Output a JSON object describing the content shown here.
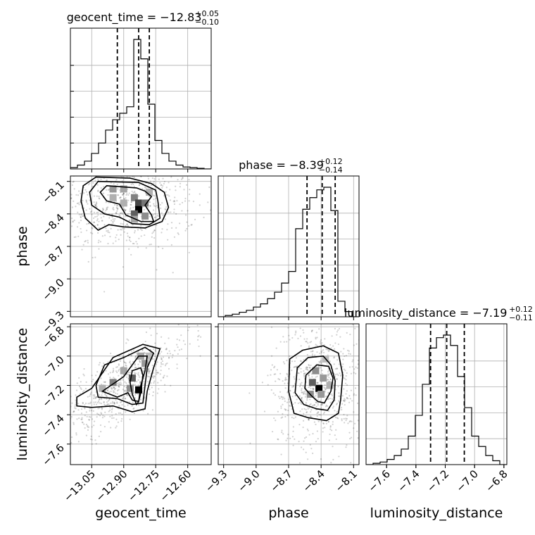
{
  "chart_data": {
    "type": "corner",
    "parameters": [
      {
        "name": "geocent_time",
        "title_main": "geocent_time = −12.83",
        "title_upper": "+0.05",
        "title_lower": "−0.10",
        "range": [
          -13.15,
          -12.49
        ],
        "ticks": [
          -13.05,
          -12.9,
          -12.75,
          -12.6
        ],
        "tick_labels": [
          "−13.05",
          "−12.90",
          "−12.75",
          "−12.60"
        ],
        "quantiles": [
          -12.93,
          -12.83,
          -12.78
        ],
        "hist_edges": [
          -13.15,
          -13.117,
          -13.084,
          -13.051,
          -13.018,
          -12.985,
          -12.952,
          -12.919,
          -12.886,
          -12.853,
          -12.82,
          -12.787,
          -12.754,
          -12.721,
          -12.688,
          -12.655,
          -12.622,
          -12.589,
          -12.556,
          -12.523,
          -12.49
        ],
        "hist_counts": [
          0.01,
          0.03,
          0.06,
          0.12,
          0.2,
          0.3,
          0.38,
          0.43,
          0.48,
          1.0,
          0.85,
          0.5,
          0.22,
          0.12,
          0.06,
          0.03,
          0.015,
          0.01,
          0.005,
          0.0
        ]
      },
      {
        "name": "phase",
        "title_main": "phase = −8.39",
        "title_upper": "+0.12",
        "title_lower": "−0.14",
        "range": [
          -9.35,
          -8.05
        ],
        "ticks": [
          -9.3,
          -9.0,
          -8.7,
          -8.4,
          -8.1
        ],
        "tick_labels": [
          "−9.3",
          "−9.0",
          "−8.7",
          "−8.4",
          "−8.1"
        ],
        "quantiles": [
          -8.53,
          -8.39,
          -8.27
        ],
        "hist_edges": [
          -9.35,
          -9.285,
          -9.22,
          -9.155,
          -9.09,
          -9.025,
          -8.96,
          -8.895,
          -8.83,
          -8.765,
          -8.7,
          -8.635,
          -8.57,
          -8.505,
          -8.44,
          -8.375,
          -8.31,
          -8.245,
          -8.18,
          -8.115,
          -8.05
        ],
        "hist_counts": [
          0.0,
          0.01,
          0.02,
          0.035,
          0.05,
          0.075,
          0.1,
          0.14,
          0.19,
          0.26,
          0.35,
          0.68,
          0.83,
          0.92,
          0.98,
          1.0,
          0.82,
          0.12,
          0.04,
          0.0
        ]
      },
      {
        "name": "luminosity_distance",
        "title_main": "luminosity_distance = −7.19",
        "title_upper": "+0.12",
        "title_lower": "−0.11",
        "range": [
          -7.74,
          -6.78
        ],
        "ticks": [
          -7.6,
          -7.4,
          -7.2,
          -7.0,
          -6.8
        ],
        "tick_labels": [
          "−7.6",
          "−7.4",
          "−7.2",
          "−7.0",
          "−6.8"
        ],
        "quantiles": [
          -7.3,
          -7.19,
          -7.07
        ],
        "hist_edges": [
          -7.74,
          -7.692,
          -7.644,
          -7.596,
          -7.548,
          -7.5,
          -7.452,
          -7.404,
          -7.356,
          -7.308,
          -7.26,
          -7.212,
          -7.164,
          -7.116,
          -7.068,
          -7.02,
          -6.972,
          -6.924,
          -6.876,
          -6.828,
          -6.78
        ],
        "hist_counts": [
          0.0,
          0.01,
          0.02,
          0.04,
          0.07,
          0.12,
          0.22,
          0.38,
          0.62,
          0.9,
          0.98,
          1.0,
          0.92,
          0.68,
          0.44,
          0.22,
          0.14,
          0.07,
          0.03,
          0.0
        ]
      }
    ],
    "pairs": [
      {
        "x_param": 0,
        "y_param": 1,
        "density_peak": [
          -12.83,
          -8.37
        ],
        "contours": [
          [
            [
              -12.98,
              -8.14
            ],
            [
              -12.84,
              -8.16
            ],
            [
              -12.8,
              -8.19
            ],
            [
              -12.77,
              -8.24
            ],
            [
              -12.8,
              -8.32
            ],
            [
              -12.77,
              -8.41
            ],
            [
              -12.76,
              -8.47
            ],
            [
              -12.82,
              -8.47
            ],
            [
              -12.89,
              -8.41
            ],
            [
              -12.92,
              -8.31
            ],
            [
              -12.98,
              -8.28
            ],
            [
              -13.01,
              -8.2
            ]
          ],
          [
            [
              -13.02,
              -8.1
            ],
            [
              -12.83,
              -8.11
            ],
            [
              -12.75,
              -8.18
            ],
            [
              -12.74,
              -8.28
            ],
            [
              -12.73,
              -8.44
            ],
            [
              -12.78,
              -8.5
            ],
            [
              -12.86,
              -8.49
            ],
            [
              -12.92,
              -8.43
            ],
            [
              -12.99,
              -8.4
            ],
            [
              -13.05,
              -8.32
            ],
            [
              -13.06,
              -8.2
            ]
          ],
          [
            [
              -13.03,
              -8.06
            ],
            [
              -12.87,
              -8.07
            ],
            [
              -12.77,
              -8.12
            ],
            [
              -12.71,
              -8.2
            ],
            [
              -12.69,
              -8.34
            ],
            [
              -12.72,
              -8.47
            ],
            [
              -12.8,
              -8.53
            ],
            [
              -12.9,
              -8.52
            ],
            [
              -12.97,
              -8.5
            ],
            [
              -13.02,
              -8.55
            ],
            [
              -13.08,
              -8.44
            ],
            [
              -13.1,
              -8.28
            ],
            [
              -13.09,
              -8.14
            ]
          ]
        ],
        "heat_cells": [
          [
            -12.95,
            -8.17,
            0.35
          ],
          [
            -12.9,
            -8.17,
            0.3
          ],
          [
            -12.85,
            -8.25,
            0.45
          ],
          [
            -12.83,
            -8.3,
            0.7
          ],
          [
            -12.83,
            -8.36,
            1.0
          ],
          [
            -12.8,
            -8.3,
            0.5
          ],
          [
            -12.85,
            -8.4,
            0.6
          ],
          [
            -12.8,
            -8.42,
            0.4
          ],
          [
            -12.95,
            -8.25,
            0.25
          ],
          [
            -12.9,
            -8.3,
            0.25
          ],
          [
            -12.78,
            -8.2,
            0.25
          ],
          [
            -12.85,
            -8.45,
            0.3
          ]
        ]
      },
      {
        "x_param": 0,
        "y_param": 2,
        "density_peak": [
          -12.83,
          -7.23
        ],
        "contours": [
          [
            [
              -12.86,
              -7.1
            ],
            [
              -12.82,
              -7.08
            ],
            [
              -12.81,
              -7.13
            ],
            [
              -12.82,
              -7.25
            ],
            [
              -12.83,
              -7.31
            ],
            [
              -12.84,
              -7.33
            ],
            [
              -12.86,
              -7.26
            ],
            [
              -12.87,
              -7.18
            ]
          ],
          [
            [
              -12.9,
              -7.14
            ],
            [
              -12.83,
              -7.0
            ],
            [
              -12.79,
              -7.0
            ],
            [
              -12.8,
              -7.1
            ],
            [
              -12.82,
              -7.2
            ],
            [
              -12.83,
              -7.31
            ],
            [
              -12.86,
              -7.3
            ],
            [
              -12.88,
              -7.25
            ],
            [
              -12.93,
              -7.28
            ],
            [
              -13.0,
              -7.24
            ],
            [
              -12.96,
              -7.2
            ]
          ],
          [
            [
              -12.99,
              -7.06
            ],
            [
              -12.9,
              -7.01
            ],
            [
              -12.8,
              -6.94
            ],
            [
              -12.76,
              -6.98
            ],
            [
              -12.79,
              -7.08
            ],
            [
              -12.8,
              -7.2
            ],
            [
              -12.81,
              -7.32
            ],
            [
              -12.86,
              -7.33
            ],
            [
              -12.93,
              -7.29
            ],
            [
              -13.02,
              -7.28
            ],
            [
              -13.03,
              -7.2
            ]
          ],
          [
            [
              -13.05,
              -7.22
            ],
            [
              -12.95,
              -7.01
            ],
            [
              -12.81,
              -6.92
            ],
            [
              -12.73,
              -6.95
            ],
            [
              -12.76,
              -7.08
            ],
            [
              -12.79,
              -7.24
            ],
            [
              -12.8,
              -7.36
            ],
            [
              -12.86,
              -7.38
            ],
            [
              -12.95,
              -7.34
            ],
            [
              -13.05,
              -7.35
            ],
            [
              -13.12,
              -7.34
            ],
            [
              -13.12,
              -7.28
            ]
          ]
        ],
        "heat_cells": [
          [
            -12.83,
            -7.23,
            1.0
          ],
          [
            -12.86,
            -7.15,
            0.6
          ],
          [
            -12.8,
            -7.05,
            0.35
          ],
          [
            -12.9,
            -7.1,
            0.3
          ],
          [
            -12.95,
            -7.18,
            0.45
          ],
          [
            -12.87,
            -7.22,
            0.4
          ],
          [
            -13.0,
            -7.22,
            0.25
          ],
          [
            -12.82,
            -7.0,
            0.3
          ],
          [
            -12.78,
            -7.0,
            0.2
          ]
        ]
      },
      {
        "x_param": 1,
        "y_param": 2,
        "density_peak": [
          -8.42,
          -7.24
        ],
        "contours": [
          [
            [
              -8.54,
              -7.13
            ],
            [
              -8.44,
              -7.06
            ],
            [
              -8.33,
              -7.07
            ],
            [
              -8.29,
              -7.15
            ],
            [
              -8.31,
              -7.24
            ],
            [
              -8.37,
              -7.32
            ],
            [
              -8.43,
              -7.31
            ],
            [
              -8.49,
              -7.27
            ],
            [
              -8.55,
              -7.22
            ]
          ],
          [
            [
              -8.62,
              -7.08
            ],
            [
              -8.52,
              -7.01
            ],
            [
              -8.38,
              -7.0
            ],
            [
              -8.31,
              -7.06
            ],
            [
              -8.27,
              -7.17
            ],
            [
              -8.28,
              -7.3
            ],
            [
              -8.34,
              -7.37
            ],
            [
              -8.44,
              -7.36
            ],
            [
              -8.56,
              -7.33
            ],
            [
              -8.64,
              -7.25
            ]
          ],
          [
            [
              -8.69,
              -7.02
            ],
            [
              -8.57,
              -6.96
            ],
            [
              -8.38,
              -6.93
            ],
            [
              -8.24,
              -6.98
            ],
            [
              -8.2,
              -7.13
            ],
            [
              -8.22,
              -7.3
            ],
            [
              -8.24,
              -7.39
            ],
            [
              -8.35,
              -7.44
            ],
            [
              -8.52,
              -7.42
            ],
            [
              -8.65,
              -7.39
            ],
            [
              -8.7,
              -7.24
            ]
          ]
        ],
        "heat_cells": [
          [
            -8.42,
            -7.22,
            1.0
          ],
          [
            -8.48,
            -7.18,
            0.6
          ],
          [
            -8.45,
            -7.1,
            0.4
          ],
          [
            -8.38,
            -7.15,
            0.35
          ],
          [
            -8.5,
            -7.26,
            0.4
          ],
          [
            -8.4,
            -7.26,
            0.35
          ],
          [
            -8.32,
            -7.2,
            0.25
          ],
          [
            -8.36,
            -7.02,
            0.2
          ]
        ]
      }
    ]
  }
}
